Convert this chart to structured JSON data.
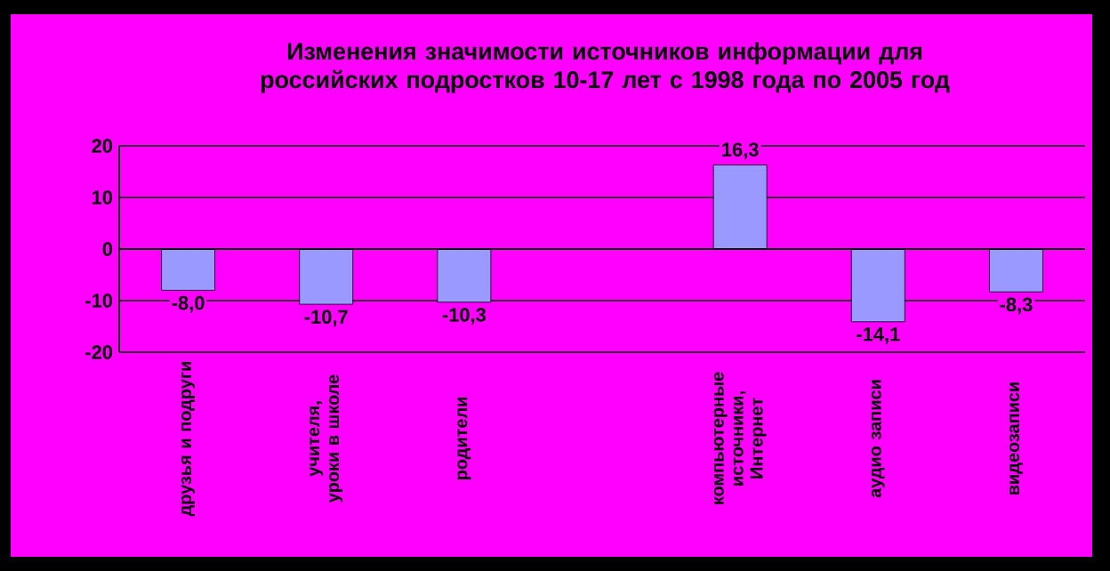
{
  "chart_data": {
    "type": "bar",
    "title": "Изменения значимости источников информации для российских подростков 10-17 лет с 1998 года по 2005 год",
    "categories": [
      "друзья и подруги",
      "учителя, уроки в школе",
      "родители",
      null,
      "компьютерные источники, Интернет",
      "аудио записи",
      "видеозаписи"
    ],
    "values": [
      -8.0,
      -10.7,
      -10.3,
      null,
      16.3,
      -14.1,
      -8.3
    ],
    "value_labels": [
      "-8,0",
      "-10,7",
      "-10,3",
      null,
      "16,3",
      "-14,1",
      "-8,3"
    ],
    "color": "#9999ff",
    "ylim": [
      -20,
      20
    ],
    "yticks": [
      -20,
      -10,
      0,
      10,
      20
    ],
    "grid": "y"
  }
}
